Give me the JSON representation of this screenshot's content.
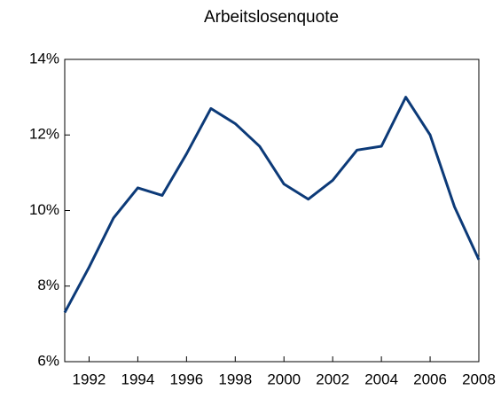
{
  "chart_data": {
    "type": "line",
    "title": "Arbeitslosenquote",
    "x": [
      1991,
      1992,
      1993,
      1994,
      1995,
      1996,
      1997,
      1998,
      1999,
      2000,
      2001,
      2002,
      2003,
      2004,
      2005,
      2006,
      2007,
      2008
    ],
    "series": [
      {
        "name": "Arbeitslosenquote",
        "color": "#0c3a78",
        "values": [
          7.3,
          8.5,
          9.8,
          10.6,
          10.4,
          11.5,
          12.7,
          12.3,
          11.7,
          10.7,
          10.3,
          10.8,
          11.6,
          11.7,
          13.0,
          12.0,
          10.1,
          8.7
        ]
      }
    ],
    "xlim": [
      1991,
      2008
    ],
    "xticks": [
      1992,
      1994,
      1996,
      1998,
      2000,
      2002,
      2004,
      2006,
      2008
    ],
    "ylim": [
      6,
      14
    ],
    "yticks": [
      {
        "value": 6,
        "label": "6%"
      },
      {
        "value": 8,
        "label": "8%"
      },
      {
        "value": 10,
        "label": "10%"
      },
      {
        "value": 12,
        "label": "12%"
      },
      {
        "value": 14,
        "label": "14%"
      }
    ],
    "grid": false
  }
}
